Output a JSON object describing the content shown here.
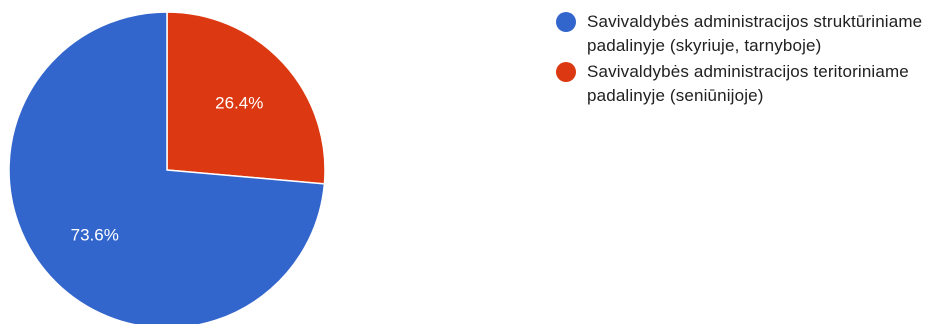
{
  "chart_data": {
    "type": "pie",
    "categories": [
      "Savivaldybės administracijos struktūriniame padalinyje (skyriuje, tarnyboje)",
      "Savivaldybės administracijos teritoriniame padalinyje (seniūnijoje)"
    ],
    "values": [
      73.6,
      26.4
    ],
    "value_labels": [
      "73.6%",
      "26.4%"
    ],
    "colors": [
      "#3366cc",
      "#dc3912"
    ],
    "legend_position": "right"
  }
}
